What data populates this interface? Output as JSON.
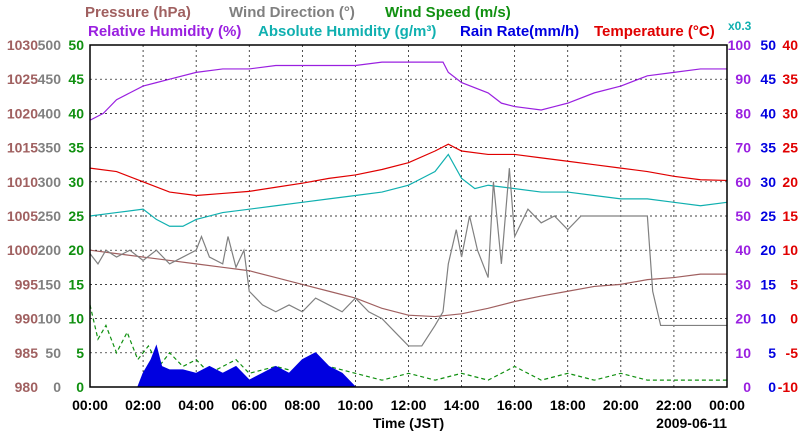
{
  "chart_data": {
    "type": "line",
    "date": "2009-06-11",
    "xlabel": "Time (JST)",
    "x_ticks": [
      "00:00",
      "02:00",
      "04:00",
      "06:00",
      "08:00",
      "10:00",
      "12:00",
      "14:00",
      "16:00",
      "18:00",
      "20:00",
      "22:00",
      "00:00"
    ],
    "xlim_hours": [
      0,
      24
    ],
    "legend": {
      "row1": [
        {
          "text": "Pressure (hPa)",
          "color": "#a06060"
        },
        {
          "text": "Wind Direction (°)",
          "color": "#808080"
        },
        {
          "text": "Wind Speed (m/s)",
          "color": "#109010"
        }
      ],
      "row2": [
        {
          "text": "Relative Humidity (%)",
          "color": "#9a20e0"
        },
        {
          "text": "Absolute Humidity (g/m³)",
          "color": "#10b0b0"
        },
        {
          "text": "Rain Rate(mm/h)",
          "color": "#0000e0"
        },
        {
          "text": "Temperature (°C)",
          "color": "#e00000"
        }
      ],
      "scale_note": "x0.3",
      "scale_note_color": "#10b0b0"
    },
    "axes": {
      "pressure": {
        "label": "Pressure (hPa)",
        "color": "#a06060",
        "ylim": [
          980,
          1030
        ],
        "ticks": [
          "1030",
          "1025",
          "1020",
          "1015",
          "1010",
          "1005",
          "1000",
          "995",
          "990",
          "985",
          "980"
        ]
      },
      "wind_direction": {
        "label": "Wind Direction (°)",
        "color": "#808080",
        "ylim": [
          0,
          500
        ],
        "ticks": [
          "500",
          "450",
          "400",
          "350",
          "300",
          "250",
          "200",
          "150",
          "100",
          "50",
          "0"
        ]
      },
      "wind_speed": {
        "label": "Wind Speed (m/s)",
        "color": "#109010",
        "ylim": [
          0,
          50
        ],
        "ticks": [
          "50",
          "45",
          "40",
          "35",
          "30",
          "25",
          "20",
          "15",
          "10",
          "5",
          "0"
        ]
      },
      "relative_humidity": {
        "label": "Relative Humidity (%)",
        "color": "#9a20e0",
        "ylim": [
          0,
          100
        ],
        "ticks": [
          "100",
          "90",
          "80",
          "70",
          "60",
          "50",
          "40",
          "30",
          "20",
          "10",
          "0"
        ]
      },
      "rain_rate": {
        "label": "Rain Rate (mm/h)",
        "color": "#0000e0",
        "ylim": [
          0,
          50
        ],
        "ticks": [
          "50",
          "45",
          "40",
          "35",
          "30",
          "25",
          "20",
          "15",
          "10",
          "5",
          "0"
        ]
      },
      "temperature": {
        "label": "Temperature (°C)",
        "color": "#e00000",
        "ylim": [
          -10,
          40
        ],
        "ticks": [
          "40",
          "35",
          "30",
          "25",
          "20",
          "15",
          "10",
          "5",
          "0",
          "-5",
          "-10"
        ]
      }
    },
    "series": [
      {
        "name": "Relative Humidity",
        "unit": "%",
        "color": "#9a20e0",
        "axis": "relative_humidity",
        "style": "solid",
        "points": [
          [
            0,
            78
          ],
          [
            0.5,
            80
          ],
          [
            1,
            84
          ],
          [
            1.5,
            86
          ],
          [
            2,
            88
          ],
          [
            2.5,
            89
          ],
          [
            3,
            90
          ],
          [
            4,
            92
          ],
          [
            5,
            93
          ],
          [
            6,
            93
          ],
          [
            7,
            94
          ],
          [
            8,
            94
          ],
          [
            9,
            94
          ],
          [
            10,
            94
          ],
          [
            11,
            95
          ],
          [
            12,
            95
          ],
          [
            13,
            95
          ],
          [
            13.3,
            95
          ],
          [
            13.5,
            92
          ],
          [
            14,
            89
          ],
          [
            15,
            86
          ],
          [
            15.5,
            83
          ],
          [
            16,
            82
          ],
          [
            17,
            81
          ],
          [
            17.5,
            82
          ],
          [
            18,
            83
          ],
          [
            19,
            86
          ],
          [
            20,
            88
          ],
          [
            21,
            91
          ],
          [
            22,
            92
          ],
          [
            23,
            93
          ],
          [
            24,
            93
          ]
        ]
      },
      {
        "name": "Temperature",
        "unit": "°C",
        "color": "#e00000",
        "axis": "temperature",
        "style": "solid",
        "points": [
          [
            0,
            22
          ],
          [
            1,
            21.5
          ],
          [
            2,
            20
          ],
          [
            3,
            18.5
          ],
          [
            4,
            18
          ],
          [
            5,
            18.3
          ],
          [
            6,
            18.6
          ],
          [
            7,
            19.2
          ],
          [
            8,
            19.8
          ],
          [
            9,
            20.5
          ],
          [
            10,
            21
          ],
          [
            11,
            21.8
          ],
          [
            12,
            22.8
          ],
          [
            13,
            24.5
          ],
          [
            13.5,
            25.5
          ],
          [
            14,
            24.5
          ],
          [
            15,
            24
          ],
          [
            16,
            24
          ],
          [
            17,
            23.5
          ],
          [
            18,
            23
          ],
          [
            19,
            22.5
          ],
          [
            20,
            22
          ],
          [
            21,
            21.5
          ],
          [
            22,
            20.8
          ],
          [
            23,
            20.3
          ],
          [
            24,
            20.2
          ]
        ]
      },
      {
        "name": "Absolute Humidity (x0.3)",
        "unit": "g/m³",
        "color": "#10b0b0",
        "axis": "relative_humidity",
        "style": "solid",
        "points": [
          [
            0,
            50
          ],
          [
            1,
            51
          ],
          [
            2,
            52
          ],
          [
            2.5,
            49
          ],
          [
            3,
            47
          ],
          [
            3.5,
            47
          ],
          [
            4,
            49
          ],
          [
            5,
            51
          ],
          [
            6,
            52
          ],
          [
            7,
            53
          ],
          [
            8,
            54
          ],
          [
            9,
            55
          ],
          [
            10,
            56
          ],
          [
            11,
            57
          ],
          [
            12,
            59
          ],
          [
            12.5,
            61
          ],
          [
            13,
            63
          ],
          [
            13.3,
            66
          ],
          [
            13.5,
            68
          ],
          [
            14,
            61
          ],
          [
            14.5,
            58
          ],
          [
            15,
            59
          ],
          [
            16,
            58
          ],
          [
            17,
            57
          ],
          [
            18,
            57
          ],
          [
            19,
            56
          ],
          [
            20,
            55
          ],
          [
            21,
            55
          ],
          [
            22,
            54
          ],
          [
            23,
            53
          ],
          [
            24,
            54
          ]
        ]
      },
      {
        "name": "Pressure",
        "unit": "hPa",
        "color": "#a06060",
        "axis": "pressure",
        "style": "solid",
        "points": [
          [
            0,
            1000
          ],
          [
            1,
            999.5
          ],
          [
            2,
            999
          ],
          [
            3,
            998.5
          ],
          [
            4,
            998
          ],
          [
            5,
            997.5
          ],
          [
            6,
            997
          ],
          [
            7,
            996
          ],
          [
            8,
            995
          ],
          [
            9,
            994
          ],
          [
            10,
            993
          ],
          [
            11,
            991.5
          ],
          [
            12,
            990.5
          ],
          [
            13,
            990.3
          ],
          [
            14,
            990.7
          ],
          [
            15,
            991.5
          ],
          [
            16,
            992.5
          ],
          [
            17,
            993.3
          ],
          [
            18,
            994
          ],
          [
            19,
            994.7
          ],
          [
            20,
            995
          ],
          [
            21,
            995.7
          ],
          [
            22,
            996
          ],
          [
            23,
            996.5
          ],
          [
            24,
            996.5
          ]
        ]
      },
      {
        "name": "Wind Direction",
        "unit": "°",
        "color": "#808080",
        "axis": "wind_direction",
        "style": "solid",
        "points": [
          [
            0,
            195
          ],
          [
            0.3,
            180
          ],
          [
            0.6,
            200
          ],
          [
            1,
            190
          ],
          [
            1.5,
            200
          ],
          [
            2,
            185
          ],
          [
            2.5,
            200
          ],
          [
            3,
            180
          ],
          [
            3.5,
            190
          ],
          [
            4,
            200
          ],
          [
            4.2,
            220
          ],
          [
            4.5,
            190
          ],
          [
            5,
            180
          ],
          [
            5.2,
            220
          ],
          [
            5.5,
            175
          ],
          [
            5.8,
            200
          ],
          [
            6,
            140
          ],
          [
            6.5,
            120
          ],
          [
            7,
            110
          ],
          [
            7.5,
            120
          ],
          [
            8,
            110
          ],
          [
            8.5,
            130
          ],
          [
            9,
            120
          ],
          [
            9.5,
            110
          ],
          [
            10,
            130
          ],
          [
            10.5,
            110
          ],
          [
            11,
            100
          ],
          [
            11.5,
            80
          ],
          [
            12,
            60
          ],
          [
            12.5,
            60
          ],
          [
            13,
            90
          ],
          [
            13.3,
            110
          ],
          [
            13.5,
            180
          ],
          [
            13.8,
            230
          ],
          [
            14,
            190
          ],
          [
            14.3,
            250
          ],
          [
            14.6,
            200
          ],
          [
            15,
            160
          ],
          [
            15.2,
            300
          ],
          [
            15.5,
            180
          ],
          [
            15.8,
            320
          ],
          [
            16,
            220
          ],
          [
            16.5,
            260
          ],
          [
            17,
            240
          ],
          [
            17.5,
            250
          ],
          [
            18,
            230
          ],
          [
            18.5,
            250
          ],
          [
            19,
            250
          ],
          [
            20,
            250
          ],
          [
            20.5,
            250
          ],
          [
            21,
            250
          ],
          [
            21.2,
            140
          ],
          [
            21.5,
            90
          ],
          [
            22,
            90
          ],
          [
            23,
            90
          ],
          [
            24,
            90
          ]
        ]
      },
      {
        "name": "Wind Speed",
        "unit": "m/s",
        "color": "#109010",
        "axis": "wind_speed",
        "style": "dashed",
        "points": [
          [
            0,
            12
          ],
          [
            0.3,
            7
          ],
          [
            0.6,
            9
          ],
          [
            1,
            5
          ],
          [
            1.4,
            8
          ],
          [
            1.8,
            4
          ],
          [
            2.2,
            6
          ],
          [
            2.6,
            3
          ],
          [
            3,
            5
          ],
          [
            3.5,
            3
          ],
          [
            4,
            4
          ],
          [
            4.5,
            2
          ],
          [
            5,
            3
          ],
          [
            5.5,
            4
          ],
          [
            6,
            2
          ],
          [
            7,
            3
          ],
          [
            8,
            2
          ],
          [
            9,
            3
          ],
          [
            10,
            2
          ],
          [
            11,
            1
          ],
          [
            12,
            2
          ],
          [
            13,
            1
          ],
          [
            14,
            2
          ],
          [
            15,
            1
          ],
          [
            16,
            3
          ],
          [
            17,
            1
          ],
          [
            18,
            2
          ],
          [
            19,
            1
          ],
          [
            20,
            2
          ],
          [
            21,
            1
          ],
          [
            22,
            1
          ],
          [
            23,
            1
          ],
          [
            24,
            1
          ]
        ]
      },
      {
        "name": "Rain Rate",
        "unit": "mm/h",
        "color": "#0000e0",
        "axis": "rain_rate",
        "style": "area",
        "points": [
          [
            1.8,
            0
          ],
          [
            2,
            2
          ],
          [
            2.3,
            4
          ],
          [
            2.5,
            6
          ],
          [
            2.7,
            3
          ],
          [
            3,
            2.5
          ],
          [
            3.5,
            2.5
          ],
          [
            4,
            2
          ],
          [
            4.5,
            3
          ],
          [
            5,
            2
          ],
          [
            5.5,
            3
          ],
          [
            6,
            1
          ],
          [
            6.5,
            2
          ],
          [
            7,
            3
          ],
          [
            7.5,
            2
          ],
          [
            8,
            4
          ],
          [
            8.5,
            5
          ],
          [
            9,
            3
          ],
          [
            9.5,
            2
          ],
          [
            10,
            0
          ]
        ]
      }
    ]
  }
}
